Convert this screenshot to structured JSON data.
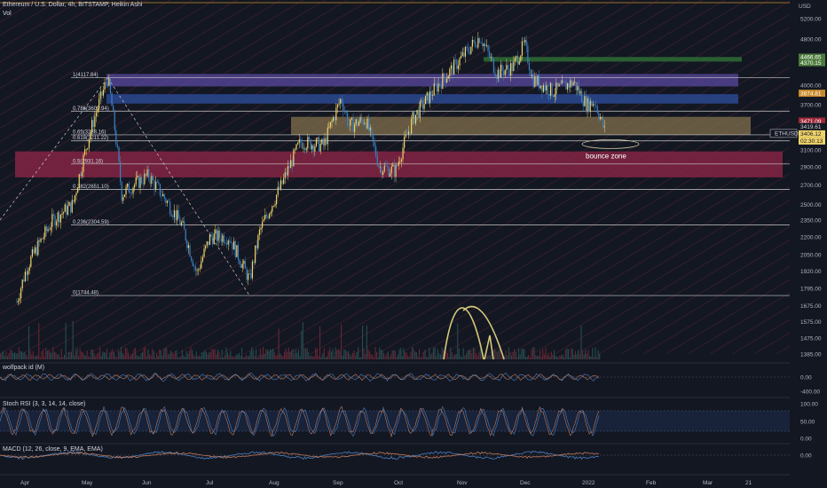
{
  "header": {
    "title": "Ethereum / U.S. Dollar, 4h, BITSTAMP, Heikin Ashi",
    "volume_label": "Vol"
  },
  "colors": {
    "background": "#131722",
    "up_candle": "#f0d46a",
    "down_candle": "#3b82c4",
    "fib_line": "#c9c9c9",
    "purple_zone": "#5b4aa0",
    "blue_zone": "#2f4fa0",
    "tan_zone": "#8a7650",
    "red_zone": "#8b2546",
    "green_zone": "#2e6b34",
    "channel_line": "#b03a4a",
    "osc_line_a": "#c07a5a",
    "osc_line_b": "#4a7fc0",
    "annotation": "#d4c97a"
  },
  "price_axis": {
    "unit": "USD",
    "ticks": [
      "5200.00",
      "4800.00",
      "4400.00",
      "4000.00",
      "3700.00",
      "3400.00",
      "3100.00",
      "2900.00",
      "2700.00",
      "2500.00",
      "2350.00",
      "2200.00",
      "2050.00",
      "1920.00",
      "1795.00",
      "1675.00",
      "1575.00",
      "1475.00",
      "1385.00"
    ],
    "labels": [
      {
        "text": "4466.65",
        "color": "#4c7a3c"
      },
      {
        "text": "4370.15",
        "color": "#4c7a3c"
      },
      {
        "text": "3874.81",
        "color": "#c88a2a"
      },
      {
        "text": "3471.09",
        "color": "#a0283a"
      },
      {
        "text": "3419.61",
        "color": "#d1d4dc"
      },
      {
        "text": "ETHUSD",
        "color": "#d1d4dc"
      },
      {
        "text": "3406.12",
        "color": "#f0d46a"
      },
      {
        "text": "02:30:13",
        "color": "#f0d46a"
      }
    ]
  },
  "time_axis": {
    "labels": [
      "Apr",
      "May",
      "Jun",
      "Jul",
      "Aug",
      "Sep",
      "Oct",
      "Nov",
      "Dec",
      "2022",
      "Feb",
      "Mar",
      "21"
    ]
  },
  "fib_levels": [
    {
      "label": "1(4117.84)",
      "value": 4117.84
    },
    {
      "label": "0.786(3609.94)",
      "value": 3609.94
    },
    {
      "label": "0.65(3288.16)",
      "value": 3288.16
    },
    {
      "label": "0.618(3211.22)",
      "value": 3211.22
    },
    {
      "label": "0.5(2931.16)",
      "value": 2931.16
    },
    {
      "label": "0.382(2651.10)",
      "value": 2651.1
    },
    {
      "label": "0.236(2304.59)",
      "value": 2304.59
    },
    {
      "label": "0(1744.48)",
      "value": 1744.48
    }
  ],
  "annotation": {
    "text": "bounce zone"
  },
  "indicators": [
    {
      "name": "wolfpack id (M)",
      "ticks": [
        "0.00",
        "-400.00"
      ]
    },
    {
      "name": "Stoch RSI (3, 3, 14, 14, close)",
      "ticks": [
        "100.00",
        "50.00",
        "0.00"
      ]
    },
    {
      "name": "MACD (12, 26, close, 9, EMA, EMA)",
      "ticks": [
        "0.00"
      ]
    }
  ],
  "chart_data": {
    "type": "candlestick",
    "title": "Ethereum / U.S. Dollar, 4h, BITSTAMP, Heikin Ashi",
    "x": [
      "Apr",
      "May",
      "Jun",
      "Jul",
      "Aug",
      "Sep",
      "Oct",
      "Nov",
      "Dec",
      "2022"
    ],
    "series": [
      {
        "name": "ETHUSD",
        "values": [
          2000,
          2900,
          2400,
          2100,
          2600,
          3400,
          3000,
          4300,
          4600,
          3900
        ]
      }
    ],
    "path_points": [
      {
        "x": "Mar 25",
        "y": 1700
      },
      {
        "x": "Apr 2",
        "y": 1950
      },
      {
        "x": "Apr 15",
        "y": 2350
      },
      {
        "x": "Apr 25",
        "y": 2500
      },
      {
        "x": "May 5",
        "y": 3500
      },
      {
        "x": "May 12",
        "y": 4117
      },
      {
        "x": "May 19",
        "y": 2600
      },
      {
        "x": "May 25",
        "y": 2700
      },
      {
        "x": "Jun 2",
        "y": 2800
      },
      {
        "x": "Jun 10",
        "y": 2550
      },
      {
        "x": "Jun 18",
        "y": 2300
      },
      {
        "x": "Jun 25",
        "y": 1900
      },
      {
        "x": "Jul 1",
        "y": 2200
      },
      {
        "x": "Jul 10",
        "y": 2200
      },
      {
        "x": "Jul 20",
        "y": 1850
      },
      {
        "x": "Jul 25",
        "y": 2250
      },
      {
        "x": "Aug 5",
        "y": 2700
      },
      {
        "x": "Aug 14",
        "y": 3200
      },
      {
        "x": "Aug 25",
        "y": 3150
      },
      {
        "x": "Sep 3",
        "y": 3800
      },
      {
        "x": "Sep 7",
        "y": 3400
      },
      {
        "x": "Sep 15",
        "y": 3500
      },
      {
        "x": "Sep 22",
        "y": 2900
      },
      {
        "x": "Sep 30",
        "y": 2850
      },
      {
        "x": "Oct 8",
        "y": 3500
      },
      {
        "x": "Oct 20",
        "y": 4000
      },
      {
        "x": "Oct 28",
        "y": 4300
      },
      {
        "x": "Nov 10",
        "y": 4850
      },
      {
        "x": "Nov 18",
        "y": 4200
      },
      {
        "x": "Nov 26",
        "y": 4300
      },
      {
        "x": "Dec 1",
        "y": 4700
      },
      {
        "x": "Dec 5",
        "y": 4100
      },
      {
        "x": "Dec 15",
        "y": 3900
      },
      {
        "x": "Dec 25",
        "y": 4050
      },
      {
        "x": "Jan 1",
        "y": 3700
      },
      {
        "x": "Jan 5",
        "y": 3750
      },
      {
        "x": "Jan 10",
        "y": 3300
      }
    ],
    "ylim": [
      1385,
      5250
    ],
    "y_scale": "log",
    "xlabel": "",
    "ylabel": "USD",
    "zones": [
      {
        "name": "purple",
        "from": 3980,
        "to": 4180
      },
      {
        "name": "blue",
        "from": 3720,
        "to": 3860
      },
      {
        "name": "tan",
        "from": 3288,
        "to": 3530
      },
      {
        "name": "red",
        "from": 2780,
        "to": 3080
      },
      {
        "name": "green",
        "from": 4390,
        "to": 4470
      }
    ],
    "grid": true,
    "legend": "none"
  }
}
